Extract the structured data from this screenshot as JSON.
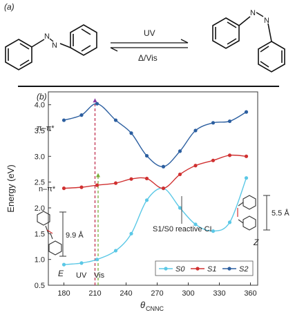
{
  "panel_a": {
    "label": "(a)",
    "forward_label": "UV",
    "reverse_label": "Δ/Vis",
    "left_nn": "N",
    "left_nn2": "N",
    "right_nn": "N",
    "right_nn2": "N"
  },
  "panel_b": {
    "label": "(b)",
    "pi_label": "π–π*",
    "n_label": "n–π*",
    "ci_label": "S1/S0 reactive CI",
    "e_label": "E",
    "z_label": "Z",
    "uv_label": "UV",
    "vis_label": "Vis",
    "e_distance": "9.9 Å",
    "z_distance": "5.5 Å"
  },
  "colors": {
    "S0": "#5bc8e6",
    "S1": "#d03030",
    "S2": "#2c5fa0",
    "uv_line": "#c03050",
    "vis_line": "#7aae3a"
  },
  "chart_data": {
    "type": "line",
    "xlabel": "θCNNC",
    "xlabel_main": "θ",
    "xlabel_sub": "CNNC",
    "ylabel": "Energy (eV)",
    "xlim": [
      165,
      367
    ],
    "ylim": [
      0.5,
      4.25
    ],
    "xticks": [
      180,
      210,
      240,
      270,
      300,
      330,
      360
    ],
    "yticks": [
      0.5,
      1.0,
      1.5,
      2.0,
      2.5,
      3.0,
      3.5,
      4.0
    ],
    "ytick_labels": [
      "0.5",
      "1.0",
      "1.5",
      "2.0",
      "2.5",
      "3.0",
      "3.5",
      "4.0"
    ],
    "legend_position": "bottom-right",
    "series": [
      {
        "key": "S0",
        "name": "S0",
        "x": [
          180,
          197,
          212,
          230,
          245,
          260,
          276,
          292,
          307,
          324,
          340,
          356
        ],
        "y": [
          0.9,
          0.93,
          1.0,
          1.17,
          1.5,
          2.15,
          2.38,
          2.0,
          1.68,
          1.55,
          1.72,
          2.58
        ]
      },
      {
        "key": "S1",
        "name": "S1",
        "x": [
          180,
          197,
          212,
          230,
          245,
          260,
          276,
          292,
          307,
          324,
          340,
          356
        ],
        "y": [
          2.38,
          2.4,
          2.44,
          2.48,
          2.56,
          2.57,
          2.38,
          2.65,
          2.82,
          2.92,
          3.02,
          3.0
        ]
      },
      {
        "key": "S2",
        "name": "S2",
        "x": [
          180,
          197,
          212,
          230,
          245,
          260,
          276,
          292,
          307,
          324,
          340,
          356
        ],
        "y": [
          3.7,
          3.8,
          4.02,
          3.7,
          3.45,
          3.01,
          2.8,
          3.1,
          3.5,
          3.65,
          3.68,
          3.86
        ]
      }
    ],
    "annotations": {
      "uv_x": 210,
      "uv_y": [
        0.5,
        4.1
      ],
      "vis_x": 213,
      "vis_y": [
        0.5,
        2.65
      ],
      "ci_x": 276
    }
  }
}
